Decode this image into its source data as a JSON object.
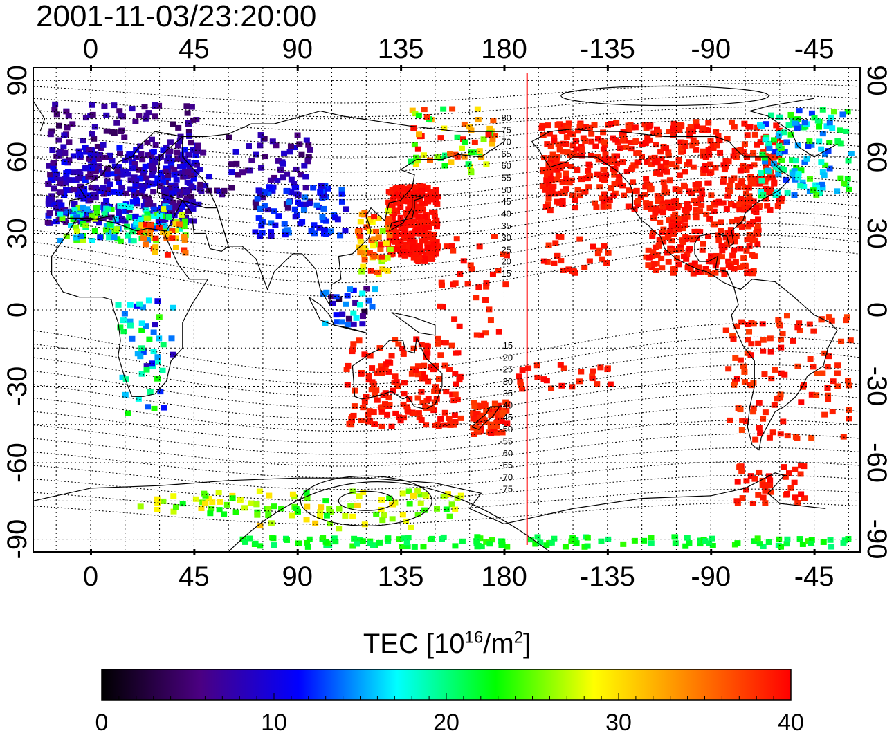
{
  "title": "2001-11-03/23:20:00",
  "map": {
    "lon_ticks": [
      0,
      45,
      90,
      135,
      180,
      -135,
      -90,
      -45
    ],
    "lat_ticks_left": [
      90,
      60,
      30,
      0,
      -30,
      -60,
      -90
    ],
    "lat_ticks_right": [
      90,
      60,
      30,
      0,
      -30,
      -60,
      -90
    ],
    "lon_range": [
      -25,
      335
    ],
    "lat_range": [
      -95,
      95
    ],
    "terminator_longitude": 190,
    "terminator_color": "#ff0000",
    "contour_labels_north": [
      "80",
      "75",
      "70",
      "65",
      "60",
      "55",
      "50",
      "45",
      "40",
      "35",
      "30",
      "25",
      "20",
      "15"
    ],
    "contour_labels_south": [
      "-15",
      "-20",
      "-25",
      "-30",
      "-35",
      "-40",
      "-45",
      "-50",
      "-55",
      "-60",
      "-65",
      "-70",
      "-75"
    ]
  },
  "colorbar": {
    "label_prefix": "TEC  [10",
    "label_exp1": "16",
    "label_mid": "/m",
    "label_exp2": "2",
    "label_suffix": "]",
    "ticks": [
      "0",
      "10",
      "20",
      "30",
      "40"
    ],
    "min": 0,
    "max": 40,
    "colors": [
      "#000000",
      "#4b0082",
      "#0000ff",
      "#00ffff",
      "#00ff00",
      "#ffff00",
      "#ff8000",
      "#ff0000"
    ]
  }
}
